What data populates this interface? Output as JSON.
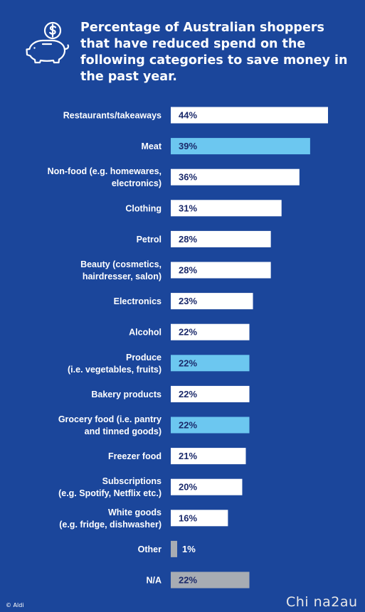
{
  "title": "Percentage of Australian shoppers that have reduced spend on the following categories to save money in the past year.",
  "source": "© Aldi",
  "watermark": "Chi na2au",
  "colors": {
    "background": "#1b469b",
    "default_bar": "#ffffff",
    "highlight_bar": "#6cc7f0",
    "other_bar": "#a7acb3",
    "value_text": "#1b2a6b"
  },
  "icon": "piggy-bank-dollar-icon",
  "chart_data": {
    "type": "bar",
    "orientation": "horizontal",
    "unit": "%",
    "categories": [
      [
        "Restaurants/takeaways"
      ],
      [
        "Meat"
      ],
      [
        "Non-food (e.g. homewares,",
        "electronics)"
      ],
      [
        "Clothing"
      ],
      [
        "Petrol"
      ],
      [
        "Beauty (cosmetics,",
        "hairdresser, salon)"
      ],
      [
        "Electronics"
      ],
      [
        "Alcohol"
      ],
      [
        "Produce",
        "(i.e. vegetables, fruits)"
      ],
      [
        "Bakery products"
      ],
      [
        "Grocery food (i.e. pantry",
        "and tinned goods)"
      ],
      [
        "Freezer food"
      ],
      [
        "Subscriptions",
        "(e.g. Spotify, Netflix etc.)"
      ],
      [
        "White goods",
        "(e.g. fridge, dishwasher)"
      ],
      [
        "Other"
      ],
      [
        "N/A"
      ]
    ],
    "values": [
      44,
      39,
      36,
      31,
      28,
      28,
      23,
      22,
      22,
      22,
      22,
      21,
      20,
      16,
      1,
      22
    ],
    "labels": [
      "44%",
      "39%",
      "36%",
      "31%",
      "28%",
      "28%",
      "23%",
      "22%",
      "22%",
      "22%",
      "22%",
      "21%",
      "20%",
      "16%",
      "1%",
      "22%"
    ],
    "bar_style": [
      "default",
      "highlight",
      "default",
      "default",
      "default",
      "default",
      "default",
      "default",
      "highlight",
      "default",
      "highlight",
      "default",
      "default",
      "default",
      "other",
      "other"
    ],
    "xlim": [
      0,
      44
    ],
    "grid": false
  }
}
